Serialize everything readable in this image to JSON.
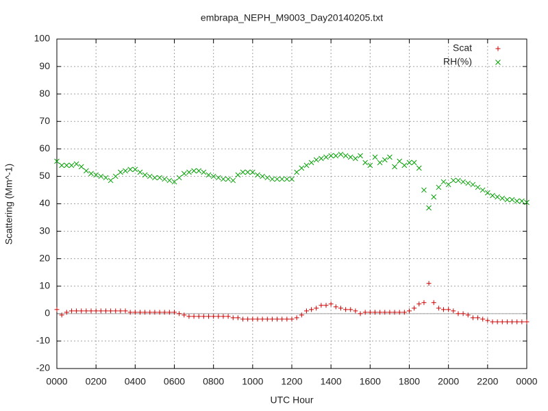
{
  "chart_data": {
    "type": "scatter",
    "title": "embrapa_NEPH_M9003_Day20140205.txt",
    "xlabel": "UTC Hour",
    "ylabel": "Scattering (Mm^-1)",
    "xlim": [
      0,
      24
    ],
    "ylim": [
      -20,
      100
    ],
    "xticks": [
      {
        "value": 0,
        "label": "0000"
      },
      {
        "value": 2,
        "label": "0200"
      },
      {
        "value": 4,
        "label": "0400"
      },
      {
        "value": 6,
        "label": "0600"
      },
      {
        "value": 8,
        "label": "0800"
      },
      {
        "value": 10,
        "label": "1000"
      },
      {
        "value": 12,
        "label": "1200"
      },
      {
        "value": 14,
        "label": "1400"
      },
      {
        "value": 16,
        "label": "1600"
      },
      {
        "value": 18,
        "label": "1800"
      },
      {
        "value": 20,
        "label": "2000"
      },
      {
        "value": 22,
        "label": "2200"
      },
      {
        "value": 24,
        "label": "0000"
      }
    ],
    "yticks": [
      -20,
      -10,
      0,
      10,
      20,
      30,
      40,
      50,
      60,
      70,
      80,
      90,
      100
    ],
    "grid": true,
    "zeroaxis": true,
    "legend": "top-right",
    "x": [
      0,
      0.25,
      0.5,
      0.75,
      1,
      1.25,
      1.5,
      1.75,
      2,
      2.25,
      2.5,
      2.75,
      3,
      3.25,
      3.5,
      3.75,
      4,
      4.25,
      4.5,
      4.75,
      5,
      5.25,
      5.5,
      5.75,
      6,
      6.25,
      6.5,
      6.75,
      7,
      7.25,
      7.5,
      7.75,
      8,
      8.25,
      8.5,
      8.75,
      9,
      9.25,
      9.5,
      9.75,
      10,
      10.25,
      10.5,
      10.75,
      11,
      11.25,
      11.5,
      11.75,
      12,
      12.25,
      12.5,
      12.75,
      13,
      13.25,
      13.5,
      13.75,
      14,
      14.25,
      14.5,
      14.75,
      15,
      15.25,
      15.5,
      15.75,
      16,
      16.25,
      16.5,
      16.75,
      17,
      17.25,
      17.5,
      17.75,
      18,
      18.25,
      18.5,
      18.75,
      19,
      19.25,
      19.5,
      19.75,
      20,
      20.25,
      20.5,
      20.75,
      21,
      21.25,
      21.5,
      21.75,
      22,
      22.25,
      22.5,
      22.75,
      23,
      23.25,
      23.5,
      23.75,
      24
    ],
    "series": [
      {
        "name": "Scat",
        "color": "#cc0000",
        "marker": "plus",
        "values": [
          1.5,
          -0.5,
          0.5,
          1,
          1,
          1,
          1,
          1,
          1,
          1,
          1,
          1,
          1,
          1,
          1,
          0.5,
          0.5,
          0.5,
          0.5,
          0.5,
          0.5,
          0.5,
          0.5,
          0.5,
          0.5,
          0,
          -0.5,
          -1,
          -1,
          -1,
          -1,
          -1,
          -1,
          -1,
          -1,
          -1,
          -1.5,
          -1.5,
          -2,
          -2,
          -2,
          -2,
          -2,
          -2,
          -2,
          -2,
          -2,
          -2,
          -2,
          -1.5,
          -0.5,
          1,
          1.5,
          2,
          3,
          3,
          3.5,
          2.5,
          2,
          1.5,
          1.5,
          1,
          0,
          0.5,
          0.5,
          0.5,
          0.5,
          0.5,
          0.5,
          0.5,
          0.5,
          0.5,
          1,
          2,
          3.5,
          4,
          11,
          4,
          2,
          1.5,
          1.5,
          1,
          0,
          0,
          -0.5,
          -1.5,
          -1.5,
          -2,
          -2.5,
          -3,
          -3,
          -3,
          -3,
          -3,
          -3,
          -3,
          -3
        ]
      },
      {
        "name": "RH(%)",
        "color": "#00a000",
        "marker": "cross",
        "values": [
          55.5,
          54,
          54,
          54,
          54.5,
          53.5,
          52,
          51,
          50.5,
          50,
          49.5,
          48.5,
          50,
          51.5,
          52,
          52.5,
          52.5,
          51.5,
          50.5,
          50,
          49.5,
          49.5,
          49,
          48.5,
          48,
          49.5,
          51,
          51.5,
          52,
          52,
          51.5,
          50.5,
          50,
          49.5,
          49,
          49,
          48.5,
          50.5,
          51.5,
          51.5,
          51.5,
          50.5,
          50,
          49.5,
          49,
          49,
          49,
          49,
          49,
          51.5,
          53,
          54,
          55,
          56,
          56.5,
          57,
          57.5,
          57.5,
          58,
          57.5,
          57,
          56.5,
          57.5,
          55,
          54,
          57,
          55,
          56,
          57,
          53.5,
          55.5,
          54,
          55,
          55,
          53,
          45,
          38.5,
          42.5,
          46,
          48,
          47,
          48.5,
          48.5,
          48,
          47.5,
          47,
          46,
          45,
          44,
          43,
          42.5,
          42,
          41.5,
          41.5,
          41,
          41,
          40.5
        ]
      }
    ]
  }
}
